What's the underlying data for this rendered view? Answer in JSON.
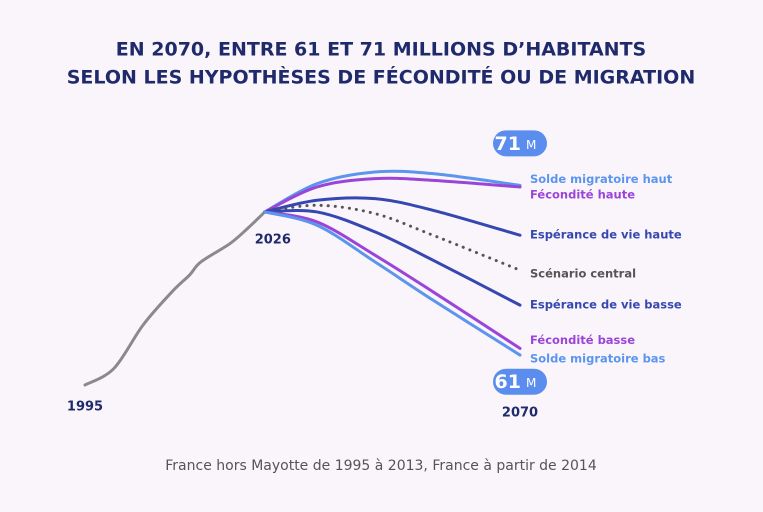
{
  "chart_data": {
    "type": "line",
    "title": [
      "EN 2070, ENTRE 61 ET 71 MILLIONS D’HABITANTS",
      "SELON LES HYPOTHÈSES DE FÉCONDITÉ OU DE MIGRATION"
    ],
    "footnote": "France hors Mayotte de 1995 à 2013, France à partir de 2014",
    "x_labels": [
      1995,
      2026,
      2070
    ],
    "badges": [
      {
        "value": 71,
        "unit": "M"
      },
      {
        "value": 61,
        "unit": "M"
      }
    ],
    "series": [
      {
        "color": "#8a8a8e",
        "style": "solid",
        "x": [
          1995,
          2000,
          2005,
          2010,
          2013,
          2015,
          2020,
          2023,
          2026
        ],
        "values": [
          59.0,
          60.0,
          62.6,
          64.6,
          65.6,
          66.4,
          67.5,
          68.4,
          69.4
        ]
      },
      {
        "name": "Solde migratoire haut",
        "color": "#5b95ee",
        "style": "solid",
        "x": [
          2026,
          2035,
          2045,
          2055,
          2070
        ],
        "values": [
          69.4,
          71.1,
          71.8,
          71.7,
          71.0
        ]
      },
      {
        "name": "Fécondité haute",
        "color": "#9a45d8",
        "style": "solid",
        "x": [
          2026,
          2035,
          2045,
          2055,
          2070
        ],
        "values": [
          69.4,
          70.9,
          71.4,
          71.3,
          70.9
        ]
      },
      {
        "name": "Espérance de vie haute",
        "color": "#3547b0",
        "style": "solid",
        "x": [
          2026,
          2035,
          2045,
          2055,
          2070
        ],
        "values": [
          69.4,
          70.1,
          70.2,
          69.5,
          68.0
        ]
      },
      {
        "name": "Scénario central",
        "color": "#555555",
        "style": "dotted",
        "x": [
          2026,
          2035,
          2045,
          2055,
          2070
        ],
        "values": [
          69.4,
          69.8,
          69.3,
          68.0,
          65.9
        ]
      },
      {
        "name": "Espérance de vie basse",
        "color": "#3547b0",
        "style": "solid",
        "x": [
          2026,
          2035,
          2045,
          2055,
          2070
        ],
        "values": [
          69.4,
          69.4,
          68.2,
          66.5,
          63.8
        ]
      },
      {
        "name": "Fécondité basse",
        "color": "#9a45d8",
        "style": "solid",
        "x": [
          2026,
          2035,
          2045,
          2055,
          2070
        ],
        "values": [
          69.4,
          68.8,
          66.8,
          64.6,
          61.2
        ]
      },
      {
        "name": "Solde migratoire bas",
        "color": "#5b95ee",
        "style": "solid",
        "x": [
          2026,
          2035,
          2045,
          2055,
          2070
        ],
        "values": [
          69.4,
          68.6,
          66.4,
          64.1,
          60.8
        ]
      }
    ]
  }
}
